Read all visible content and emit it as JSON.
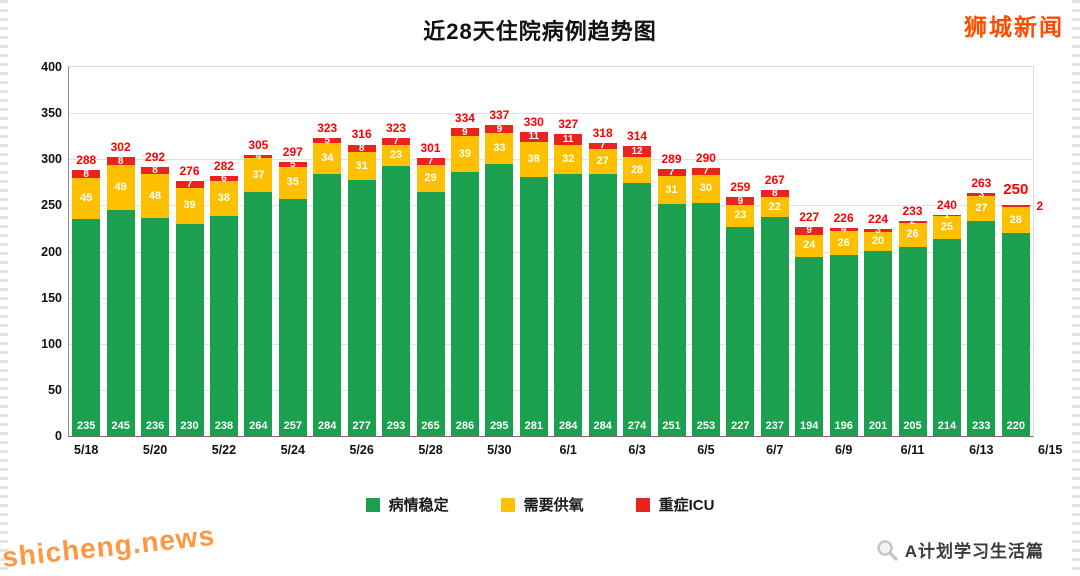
{
  "header": {
    "title": "近28天住院病例趋势图",
    "brand": "狮城新闻"
  },
  "chart_data": {
    "type": "bar",
    "stacked": true,
    "title": "近28天住院病例趋势图",
    "dates": [
      "5/18",
      "5/19",
      "5/20",
      "5/21",
      "5/22",
      "5/23",
      "5/24",
      "5/25",
      "5/26",
      "5/27",
      "5/28",
      "5/29",
      "5/30",
      "5/31",
      "6/1",
      "6/2",
      "6/3",
      "6/4",
      "6/5",
      "6/6",
      "6/7",
      "6/8",
      "6/9",
      "6/10",
      "6/11",
      "6/12",
      "6/13",
      "6/14"
    ],
    "series": [
      {
        "name": "病情稳定",
        "color": "#1aa04f",
        "values": [
          235,
          245,
          236,
          230,
          238,
          264,
          257,
          284,
          277,
          293,
          265,
          286,
          295,
          281,
          284,
          284,
          274,
          251,
          253,
          227,
          237,
          194,
          196,
          201,
          205,
          214,
          233,
          220
        ]
      },
      {
        "name": "需要供氧",
        "color": "#ffc000",
        "values": [
          45,
          49,
          48,
          39,
          38,
          37,
          35,
          34,
          31,
          23,
          29,
          39,
          33,
          38,
          32,
          27,
          28,
          31,
          30,
          23,
          22,
          24,
          26,
          20,
          26,
          25,
          27,
          28
        ]
      },
      {
        "name": "重症ICU",
        "color": "#e8241d",
        "values": [
          8,
          8,
          8,
          7,
          6,
          4,
          5,
          5,
          8,
          7,
          7,
          9,
          9,
          11,
          11,
          7,
          12,
          7,
          7,
          9,
          8,
          9,
          4,
          3,
          2,
          1,
          3,
          2
        ]
      }
    ],
    "totals": [
      288,
      302,
      292,
      276,
      282,
      305,
      297,
      323,
      316,
      323,
      301,
      334,
      337,
      330,
      327,
      318,
      314,
      289,
      290,
      259,
      267,
      227,
      226,
      224,
      233,
      240,
      263,
      250
    ],
    "x_tick_labels": [
      "5/18",
      "5/20",
      "5/22",
      "5/24",
      "5/26",
      "5/28",
      "5/30",
      "6/1",
      "6/3",
      "6/5",
      "6/7",
      "6/9",
      "6/11",
      "6/13",
      "6/15"
    ],
    "y_ticks": [
      0,
      50,
      100,
      150,
      200,
      250,
      300,
      350,
      400
    ],
    "ylim": [
      0,
      400
    ],
    "grid": true,
    "legend_position": "bottom",
    "total_label_color": "#fe0000",
    "highlight_last_total": true,
    "last_red_value_outside": "2"
  },
  "footer": {
    "watermark": "shicheng.news",
    "logo_text": "A计划学习生活篇"
  }
}
